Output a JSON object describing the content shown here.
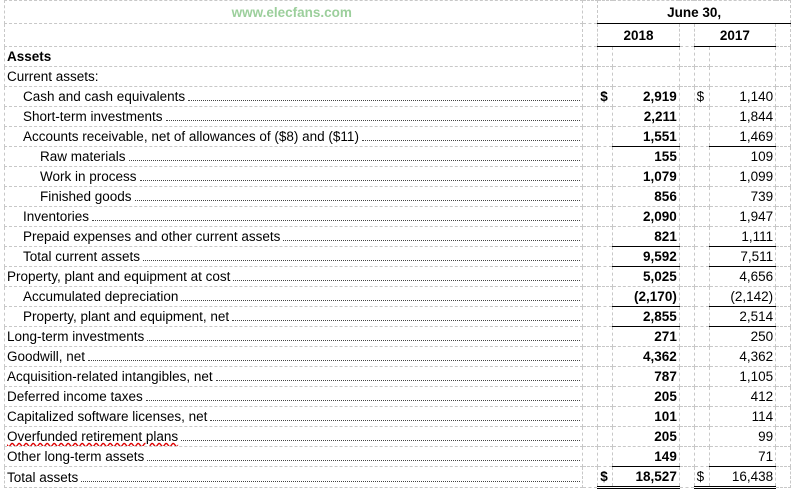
{
  "header": {
    "period": "June 30,",
    "years": [
      "2018",
      "2017"
    ]
  },
  "section": "Assets",
  "subsection": "Current assets:",
  "rows": [
    {
      "label": "Cash and cash equivalents",
      "indent": 1,
      "y2018": "2,919",
      "y2017": "1,140",
      "currency": "$"
    },
    {
      "label": "Short-term investments",
      "indent": 1,
      "y2018": "2,211",
      "y2017": "1,844"
    },
    {
      "label": "Accounts receivable, net of allowances of ($8) and ($11)",
      "indent": 1,
      "y2018": "1,551",
      "y2017": "1,469"
    },
    {
      "label": "Raw materials",
      "indent": 2,
      "y2018": "155",
      "y2017": "109"
    },
    {
      "label": "Work in process",
      "indent": 2,
      "y2018": "1,079",
      "y2017": "1,099"
    },
    {
      "label": "Finished goods",
      "indent": 2,
      "y2018": "856",
      "y2017": "739"
    },
    {
      "label": "Inventories",
      "indent": 1,
      "y2018": "2,090",
      "y2017": "1,947"
    },
    {
      "label": "Prepaid expenses and other current assets",
      "indent": 1,
      "y2018": "821",
      "y2017": "1,111"
    },
    {
      "label": "Total current assets",
      "indent": 1,
      "y2018": "9,592",
      "y2017": "7,511"
    },
    {
      "label": "Property, plant and equipment at cost",
      "indent": 0,
      "y2018": "5,025",
      "y2017": "4,656"
    },
    {
      "label": "Accumulated depreciation",
      "indent": 1,
      "y2018": "(2,170)",
      "y2017": "(2,142)"
    },
    {
      "label": "Property, plant and equipment, net",
      "indent": 1,
      "y2018": "2,855",
      "y2017": "2,514"
    },
    {
      "label": "Long-term investments",
      "indent": 0,
      "y2018": "271",
      "y2017": "250"
    },
    {
      "label": "Goodwill, net",
      "indent": 0,
      "y2018": "4,362",
      "y2017": "4,362"
    },
    {
      "label": "Acquisition-related intangibles, net",
      "indent": 0,
      "y2018": "787",
      "y2017": "1,105"
    },
    {
      "label": "Deferred income taxes",
      "indent": 0,
      "y2018": "205",
      "y2017": "412"
    },
    {
      "label": "Capitalized software licenses, net",
      "indent": 0,
      "y2018": "101",
      "y2017": "114"
    },
    {
      "label": "Overfunded retirement plans",
      "indent": 0,
      "y2018": "205",
      "y2017": "99"
    },
    {
      "label": "Other long-term assets",
      "indent": 0,
      "y2018": "149",
      "y2017": "71"
    },
    {
      "label": "Total assets",
      "indent": 0,
      "y2018": "18,527",
      "y2017": "16,438",
      "currency": "$"
    }
  ],
  "watermark": "www.elecfans.com"
}
